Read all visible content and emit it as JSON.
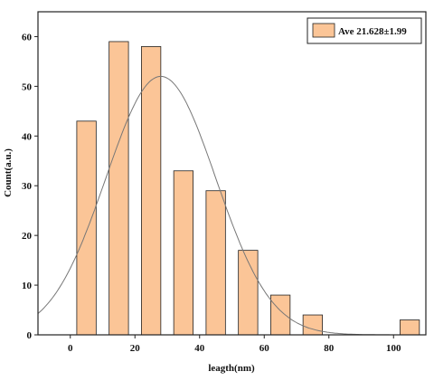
{
  "chart_data": {
    "type": "bar",
    "title": "",
    "xlabel": "leagth(nm)",
    "ylabel": "Count(a.u.)",
    "xlim": [
      -10,
      110
    ],
    "ylim": [
      0,
      65
    ],
    "x_ticks": [
      0,
      20,
      40,
      60,
      80,
      100
    ],
    "y_ticks": [
      0,
      10,
      20,
      30,
      40,
      50,
      60
    ],
    "bin_width": 6,
    "x": [
      5,
      15,
      25,
      35,
      45,
      55,
      65,
      75,
      105
    ],
    "values": [
      43,
      59,
      58,
      33,
      29,
      17,
      8,
      4,
      3
    ],
    "bar_color": "#fbc597",
    "bar_edge_color": "#222222",
    "fit_curve": {
      "type": "gaussian",
      "peak_x": 28,
      "peak_y": 52,
      "sigma": 17,
      "color": "#777777"
    },
    "legend": {
      "label": "Ave 21.628±1.99",
      "position": "top-right"
    },
    "grid": false
  }
}
